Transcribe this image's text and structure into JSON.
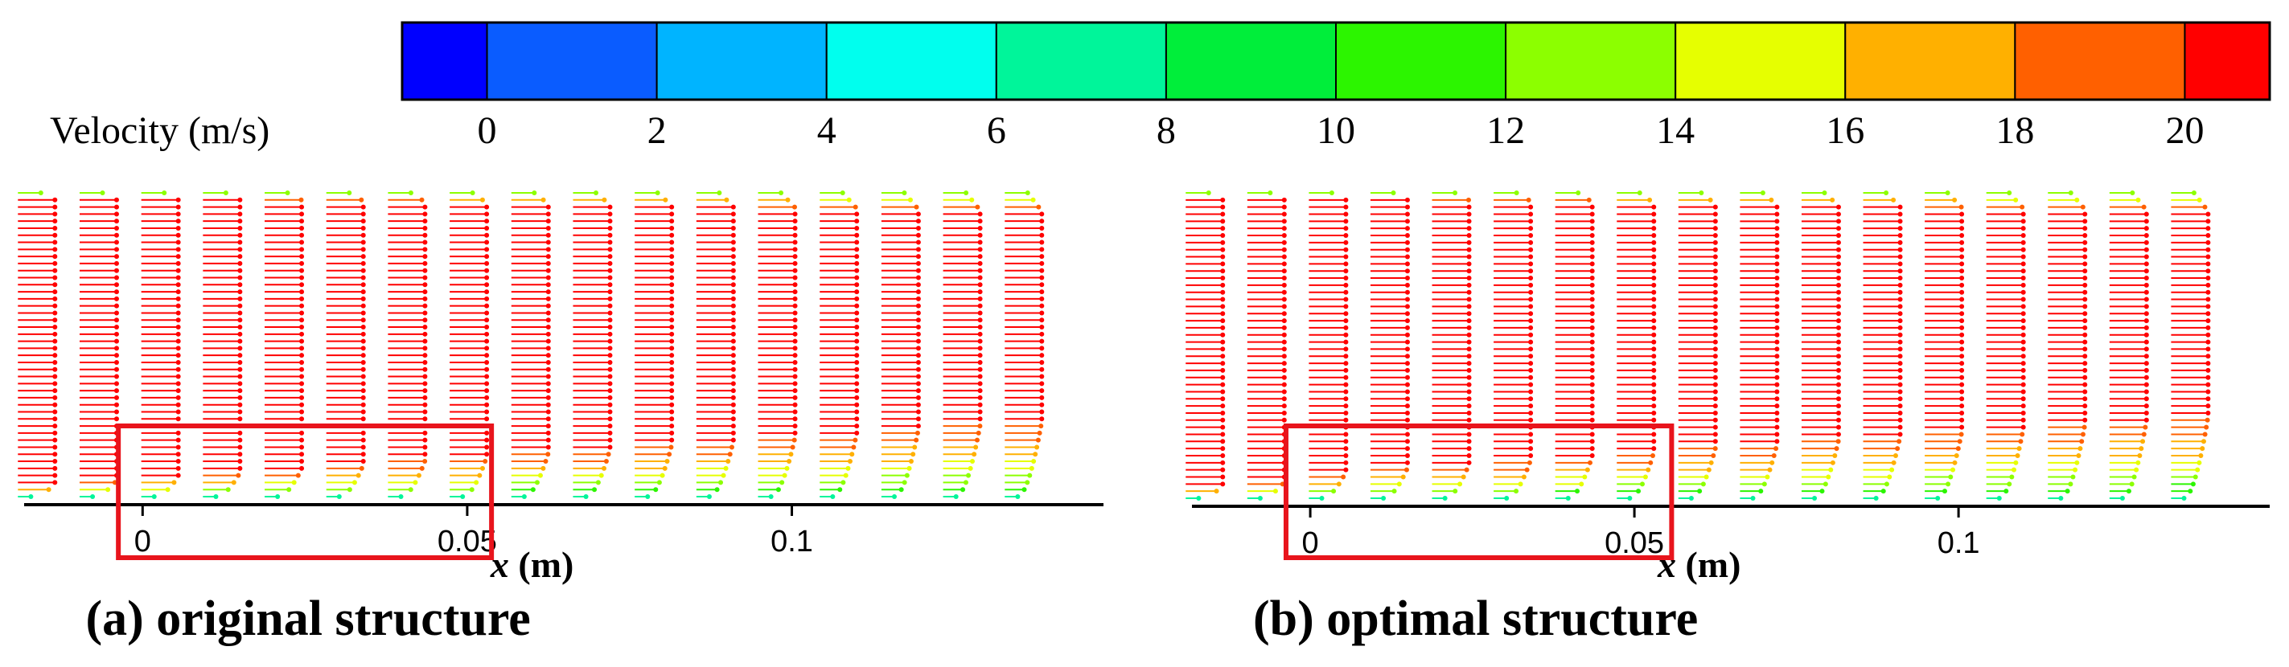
{
  "colorbar": {
    "label": "Velocity (m/s)",
    "ticks": [
      "0",
      "2",
      "4",
      "6",
      "8",
      "10",
      "12",
      "14",
      "16",
      "18",
      "20"
    ],
    "range": [
      -1,
      21
    ],
    "bin_colors": [
      "#0000ff",
      "#0a5cff",
      "#00b4ff",
      "#00ffee",
      "#00f59a",
      "#00ee3a",
      "#2cf500",
      "#8cff00",
      "#e6ff00",
      "#ffb000",
      "#ff6000",
      "#ff0000"
    ]
  },
  "chart_data": [
    {
      "type": "vector",
      "caption": "(a) original structure",
      "xlabel_var": "x",
      "xlabel_unit": " (m)",
      "x_ticks": [
        "0",
        "0.05",
        "0.1"
      ],
      "x_tick_values": [
        0,
        0.05,
        0.1
      ],
      "xlim": [
        -0.018,
        0.148
      ],
      "profile_x": [
        -0.014,
        -0.0045,
        0.005,
        0.0145,
        0.024,
        0.0335,
        0.043,
        0.0525,
        0.062,
        0.0715,
        0.081,
        0.0905,
        0.1,
        0.1095,
        0.119,
        0.1285,
        0.138
      ],
      "freestream_velocity": 20,
      "highlight": {
        "x_range": [
          -0.002,
          0.053
        ]
      }
    },
    {
      "type": "vector",
      "caption": "(b) optimal structure",
      "xlabel_var": "x",
      "xlabel_unit": " (m)",
      "x_ticks": [
        "0",
        "0.05",
        "0.1"
      ],
      "x_tick_values": [
        0,
        0.05,
        0.1
      ],
      "xlim": [
        -0.018,
        0.148
      ],
      "profile_x": [
        -0.014,
        -0.0045,
        0.005,
        0.0145,
        0.024,
        0.0335,
        0.043,
        0.0525,
        0.062,
        0.0715,
        0.081,
        0.0905,
        0.1,
        0.1095,
        0.119,
        0.1285,
        0.138
      ],
      "freestream_velocity": 20,
      "highlight": {
        "x_range": [
          -0.002,
          0.055
        ]
      }
    }
  ]
}
